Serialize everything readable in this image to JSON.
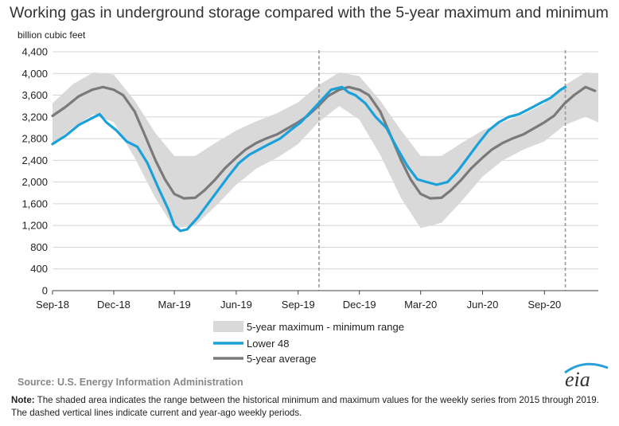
{
  "title": "Working gas in underground storage compared with the 5-year maximum and minimum",
  "source_text": "Source:  U.S. Energy Information Administration",
  "note": {
    "label": "Note:",
    "text": " The shaded area indicates the range between the historical minimum and maximum values for the weekly series from 2015 through 2019. The dashed vertical lines indicate current and year-ago weekly periods."
  },
  "logo_text": "eia",
  "colors": {
    "range": "#d9d9d9",
    "lower48": "#1ba1d9",
    "average": "#7a7a7a",
    "dashed": "#999999"
  },
  "chart_data": {
    "type": "area",
    "ylabel": "billion cubic feet",
    "ylim": [
      0,
      4400
    ],
    "yticks": [
      0,
      400,
      800,
      1200,
      1600,
      2000,
      2400,
      2800,
      3200,
      3600,
      4000,
      4400
    ],
    "ytick_labels": [
      "0",
      "400",
      "800",
      "1,200",
      "1,600",
      "2,000",
      "2,400",
      "2,800",
      "3,200",
      "3,600",
      "4,000",
      "4,400"
    ],
    "xlim": [
      "2018-09-01",
      "2020-11-20"
    ],
    "xticks": [
      {
        "date": "2018-09-01",
        "label": "Sep-18"
      },
      {
        "date": "2018-12-01",
        "label": "Dec-18"
      },
      {
        "date": "2019-03-01",
        "label": "Mar-19"
      },
      {
        "date": "2019-06-01",
        "label": "Jun-19"
      },
      {
        "date": "2019-09-01",
        "label": "Sep-19"
      },
      {
        "date": "2019-12-01",
        "label": "Dec-19"
      },
      {
        "date": "2020-03-01",
        "label": "Mar-20"
      },
      {
        "date": "2020-06-01",
        "label": "Jun-20"
      },
      {
        "date": "2020-09-01",
        "label": "Sep-20"
      }
    ],
    "grid": "horizontal",
    "legend_position": "bottom",
    "vlines": [
      {
        "date": "2019-10-02",
        "style": "dashed"
      },
      {
        "date": "2020-10-02",
        "style": "dashed"
      }
    ],
    "range": {
      "name": "5-year maximum - minimum range",
      "x": [
        "2018-09-01",
        "2018-10-01",
        "2018-11-01",
        "2018-12-01",
        "2019-01-01",
        "2019-02-01",
        "2019-03-01",
        "2019-04-01",
        "2019-05-01",
        "2019-06-01",
        "2019-07-01",
        "2019-08-01",
        "2019-09-01",
        "2019-10-01",
        "2019-11-01",
        "2019-12-01",
        "2020-01-01",
        "2020-02-01",
        "2020-03-01",
        "2020-04-01",
        "2020-05-01",
        "2020-06-01",
        "2020-07-01",
        "2020-08-01",
        "2020-09-01",
        "2020-10-01",
        "2020-11-01",
        "2020-11-20"
      ],
      "max": [
        3450,
        3800,
        4020,
        3980,
        3500,
        2900,
        2480,
        2480,
        2720,
        2950,
        3120,
        3270,
        3470,
        3780,
        4020,
        3950,
        3500,
        2950,
        2480,
        2480,
        2720,
        2950,
        3100,
        3250,
        3450,
        3780,
        4020,
        4000
      ],
      "min": [
        2700,
        3000,
        3250,
        3100,
        2450,
        1700,
        1150,
        1200,
        1550,
        1950,
        2250,
        2450,
        2700,
        3100,
        3400,
        3150,
        2500,
        1700,
        1150,
        1250,
        1650,
        2100,
        2400,
        2600,
        2750,
        3050,
        3200,
        3100
      ]
    },
    "series": [
      {
        "name": "Lower 48",
        "x": [
          "2018-09-01",
          "2018-09-20",
          "2018-10-10",
          "2018-10-30",
          "2018-11-10",
          "2018-11-20",
          "2018-12-05",
          "2018-12-20",
          "2019-01-05",
          "2019-01-20",
          "2019-02-05",
          "2019-02-20",
          "2019-03-01",
          "2019-03-10",
          "2019-03-20",
          "2019-04-05",
          "2019-04-20",
          "2019-05-05",
          "2019-05-20",
          "2019-06-05",
          "2019-06-20",
          "2019-07-05",
          "2019-07-20",
          "2019-08-05",
          "2019-08-20",
          "2019-09-05",
          "2019-09-20",
          "2019-10-05",
          "2019-10-20",
          "2019-11-05",
          "2019-11-15",
          "2019-11-25",
          "2019-12-10",
          "2019-12-25",
          "2020-01-10",
          "2020-01-25",
          "2020-02-10",
          "2020-02-25",
          "2020-03-10",
          "2020-03-25",
          "2020-04-10",
          "2020-04-25",
          "2020-05-10",
          "2020-05-25",
          "2020-06-10",
          "2020-06-25",
          "2020-07-10",
          "2020-07-25",
          "2020-08-10",
          "2020-08-25",
          "2020-09-10",
          "2020-09-25",
          "2020-10-02"
        ],
        "values": [
          2700,
          2850,
          3050,
          3180,
          3250,
          3100,
          2950,
          2750,
          2650,
          2350,
          1900,
          1500,
          1200,
          1100,
          1130,
          1350,
          1600,
          1850,
          2100,
          2350,
          2500,
          2600,
          2700,
          2800,
          2950,
          3100,
          3300,
          3500,
          3700,
          3750,
          3650,
          3600,
          3450,
          3200,
          3000,
          2650,
          2300,
          2050,
          2000,
          1950,
          2000,
          2200,
          2450,
          2700,
          2950,
          3100,
          3200,
          3250,
          3350,
          3450,
          3550,
          3700,
          3750
        ]
      },
      {
        "name": "5-year average",
        "x": [
          "2018-09-01",
          "2018-09-20",
          "2018-10-10",
          "2018-10-30",
          "2018-11-15",
          "2018-12-01",
          "2018-12-15",
          "2019-01-01",
          "2019-01-15",
          "2019-02-01",
          "2019-02-15",
          "2019-03-01",
          "2019-03-15",
          "2019-04-01",
          "2019-04-15",
          "2019-05-01",
          "2019-05-15",
          "2019-06-01",
          "2019-06-15",
          "2019-07-01",
          "2019-07-15",
          "2019-08-01",
          "2019-08-15",
          "2019-09-01",
          "2019-09-15",
          "2019-10-01",
          "2019-10-15",
          "2019-11-01",
          "2019-11-15",
          "2019-12-01",
          "2019-12-15",
          "2020-01-01",
          "2020-01-15",
          "2020-02-01",
          "2020-02-15",
          "2020-03-01",
          "2020-03-15",
          "2020-04-01",
          "2020-04-15",
          "2020-05-01",
          "2020-05-15",
          "2020-06-01",
          "2020-06-15",
          "2020-07-01",
          "2020-07-15",
          "2020-08-01",
          "2020-08-15",
          "2020-09-01",
          "2020-09-15",
          "2020-10-01",
          "2020-10-15",
          "2020-11-01",
          "2020-11-15"
        ],
        "values": [
          3220,
          3380,
          3580,
          3700,
          3750,
          3700,
          3600,
          3300,
          2900,
          2400,
          2050,
          1780,
          1700,
          1710,
          1850,
          2050,
          2250,
          2450,
          2600,
          2720,
          2800,
          2880,
          2980,
          3100,
          3220,
          3400,
          3580,
          3700,
          3750,
          3700,
          3600,
          3300,
          2900,
          2400,
          2050,
          1780,
          1700,
          1710,
          1850,
          2050,
          2250,
          2450,
          2600,
          2720,
          2800,
          2880,
          2980,
          3100,
          3220,
          3450,
          3600,
          3750,
          3680
        ]
      }
    ]
  }
}
